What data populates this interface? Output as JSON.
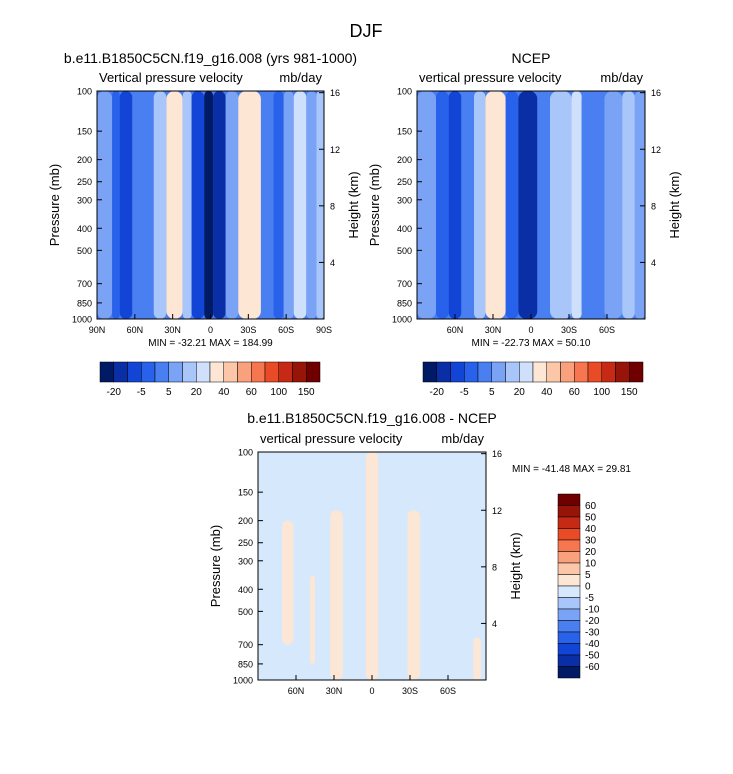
{
  "page_title": "DJF",
  "colors": {
    "blues": [
      "#001a66",
      "#0a2ea6",
      "#1245d6",
      "#2962ea",
      "#4a7ff2",
      "#7aa3f6",
      "#a9c6fa",
      "#cfe0fd"
    ],
    "reds": [
      "#fde6d3",
      "#fbc7a8",
      "#f9a17c",
      "#f6774f",
      "#e94b26",
      "#c72a14",
      "#971408",
      "#700000"
    ],
    "zero": "#d6e8fc",
    "pos_diff": "#fce6d5"
  },
  "chart_data": [
    {
      "id": "model",
      "type": "heatmap",
      "title": "b.e11.B1850C5CN.f19_g16.008 (yrs 981-1000)",
      "left_label": "Vertical pressure velocity",
      "right_label": "mb/day",
      "ylabel": "Pressure (mb)",
      "y2label": "Height (km)",
      "yticks": [
        100,
        150,
        200,
        250,
        300,
        400,
        500,
        700,
        850,
        1000
      ],
      "y2ticks": [
        16,
        12,
        8,
        4
      ],
      "xticks": [
        "90N",
        "60N",
        "30N",
        "0",
        "30S",
        "60S",
        "90S"
      ],
      "xlim": [
        90,
        -90
      ],
      "stats": "MIN = -32.21   MAX = 184.99",
      "levels": [
        "-20",
        "-5",
        "5",
        "20",
        "40",
        "60",
        "100",
        "150"
      ],
      "bands": [
        {
          "x0": 90,
          "x1": 78,
          "cls": -3
        },
        {
          "x0": 78,
          "x1": 72,
          "cls": -5
        },
        {
          "x0": 72,
          "x1": 62,
          "cls": -6
        },
        {
          "x0": 62,
          "x1": 45,
          "cls": -4
        },
        {
          "x0": 45,
          "x1": 35,
          "cls": -2
        },
        {
          "x0": 35,
          "x1": 22,
          "cls": 1
        },
        {
          "x0": 22,
          "x1": 15,
          "cls": -2
        },
        {
          "x0": 15,
          "x1": 5,
          "cls": -6
        },
        {
          "x0": 5,
          "x1": -2,
          "cls": -8
        },
        {
          "x0": -2,
          "x1": -12,
          "cls": -7
        },
        {
          "x0": -12,
          "x1": -22,
          "cls": -3
        },
        {
          "x0": -22,
          "x1": -40,
          "cls": 0
        },
        {
          "x0": -40,
          "x1": -50,
          "cls": -4
        },
        {
          "x0": -50,
          "x1": -58,
          "cls": -5
        },
        {
          "x0": -58,
          "x1": -66,
          "cls": -3
        },
        {
          "x0": -66,
          "x1": -76,
          "cls": -1
        },
        {
          "x0": -76,
          "x1": -84,
          "cls": -3
        },
        {
          "x0": -84,
          "x1": -90,
          "cls": -2
        }
      ]
    },
    {
      "id": "ncep",
      "type": "heatmap",
      "title": "NCEP",
      "left_label": "vertical pressure velocity",
      "right_label": "mb/day",
      "ylabel": "Pressure (mb)",
      "y2label": "Height (km)",
      "yticks": [
        100,
        150,
        200,
        250,
        300,
        400,
        500,
        700,
        850,
        1000
      ],
      "y2ticks": [
        16,
        12,
        8,
        4
      ],
      "xticks": [
        "60N",
        "30N",
        "0",
        "30S",
        "60S"
      ],
      "xlim": [
        90,
        -90
      ],
      "stats": "MIN = -22.73   MAX =  50.10",
      "levels": [
        "-20",
        "-5",
        "5",
        "20",
        "40",
        "60",
        "100",
        "150"
      ],
      "bands": [
        {
          "x0": 90,
          "x1": 75,
          "cls": -3
        },
        {
          "x0": 75,
          "x1": 65,
          "cls": -5
        },
        {
          "x0": 65,
          "x1": 55,
          "cls": -6
        },
        {
          "x0": 55,
          "x1": 45,
          "cls": -4
        },
        {
          "x0": 45,
          "x1": 36,
          "cls": -2
        },
        {
          "x0": 36,
          "x1": 20,
          "cls": 0
        },
        {
          "x0": 20,
          "x1": 10,
          "cls": -5
        },
        {
          "x0": 10,
          "x1": -5,
          "cls": -7
        },
        {
          "x0": -5,
          "x1": -15,
          "cls": -4
        },
        {
          "x0": -15,
          "x1": -32,
          "cls": -2
        },
        {
          "x0": -32,
          "x1": -40,
          "cls": -1
        },
        {
          "x0": -40,
          "x1": -58,
          "cls": -4
        },
        {
          "x0": -58,
          "x1": -72,
          "cls": -3
        },
        {
          "x0": -72,
          "x1": -82,
          "cls": -2
        },
        {
          "x0": -82,
          "x1": -90,
          "cls": -3
        }
      ]
    },
    {
      "id": "diff",
      "type": "heatmap",
      "title": "b.e11.B1850C5CN.f19_g16.008 - NCEP",
      "left_label": "vertical pressure velocity",
      "right_label": "mb/day",
      "ylabel": "Pressure (mb)",
      "y2label": "Height (km)",
      "yticks": [
        100,
        150,
        200,
        250,
        300,
        400,
        500,
        700,
        850,
        1000
      ],
      "y2ticks": [
        16,
        12,
        8,
        4
      ],
      "xticks": [
        "60N",
        "30N",
        "0",
        "30S",
        "60S"
      ],
      "xlim": [
        90,
        -90
      ],
      "stats": "MIN = -41.48   MAX =  29.81",
      "levels": [
        "60",
        "50",
        "40",
        "30",
        "20",
        "10",
        "5",
        "0",
        "-5",
        "-10",
        "-20",
        "-30",
        "-40",
        "-50",
        "-60"
      ],
      "bands": [
        {
          "x0": 71,
          "x1": 62,
          "cls": 1,
          "top": 200,
          "bot": 700
        },
        {
          "x0": 49,
          "x1": 45,
          "cls": 1,
          "top": 350,
          "bot": 850
        },
        {
          "x0": 33,
          "x1": 23,
          "cls": 1,
          "top": 180,
          "bot": 1000
        },
        {
          "x0": 5,
          "x1": -5,
          "cls": 1,
          "top": 100,
          "bot": 1000
        },
        {
          "x0": -28,
          "x1": -38,
          "cls": 1,
          "top": 180,
          "bot": 1000
        },
        {
          "x0": -80,
          "x1": -86,
          "cls": 1,
          "top": 650,
          "bot": 1000
        }
      ]
    }
  ]
}
